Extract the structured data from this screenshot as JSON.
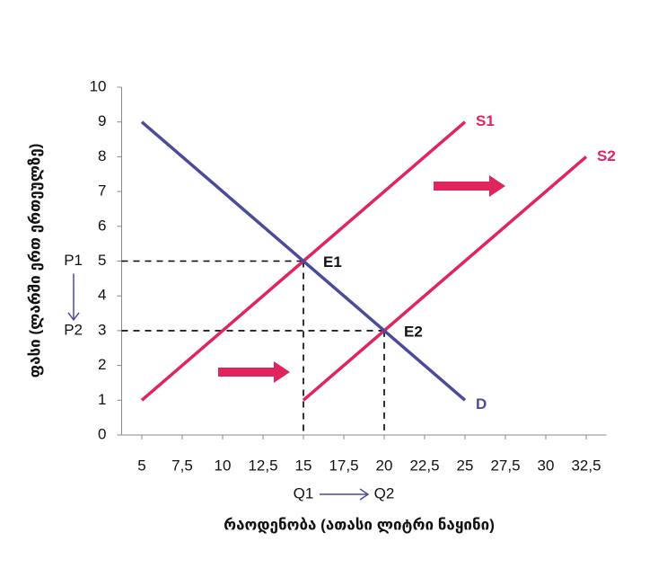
{
  "chart_data": {
    "type": "line",
    "x_label": "რაოდენობა (ათასი ლიტრი ნაყინი)",
    "y_label": "ფასი (ლარში ერთ ერთეულზე)",
    "series": [
      {
        "name": "S1",
        "color": "#e0245e",
        "x": [
          5,
          25
        ],
        "values": [
          1,
          9
        ]
      },
      {
        "name": "S2",
        "color": "#e0245e",
        "x": [
          15,
          32.5
        ],
        "values": [
          1,
          8
        ]
      },
      {
        "name": "D",
        "color": "#4b4b9b",
        "x": [
          5,
          25
        ],
        "values": [
          9,
          1
        ]
      }
    ],
    "equilibria": [
      {
        "label": "E1",
        "x": 15,
        "y": 5
      },
      {
        "label": "E2",
        "x": 20,
        "y": 3
      }
    ],
    "price_labels": [
      "P1",
      "P2"
    ],
    "quantity_labels": [
      "Q1",
      "Q2"
    ],
    "xlim": [
      3.75,
      33.75
    ],
    "xticks": [
      5,
      {
        "value": 7.5,
        "label": "7,5"
      },
      10,
      {
        "value": 12.5,
        "label": "12,5"
      },
      15,
      {
        "value": 17.5,
        "label": "17,5"
      },
      20,
      {
        "value": 22.5,
        "label": "22,5"
      },
      25,
      {
        "value": 27.5,
        "label": "27,5"
      },
      30,
      {
        "value": 32.5,
        "label": "32,5"
      }
    ],
    "ylim": [
      0,
      10
    ],
    "yticks": [
      0,
      1,
      2,
      3,
      4,
      5,
      6,
      7,
      8,
      9,
      10
    ],
    "grid": false
  }
}
